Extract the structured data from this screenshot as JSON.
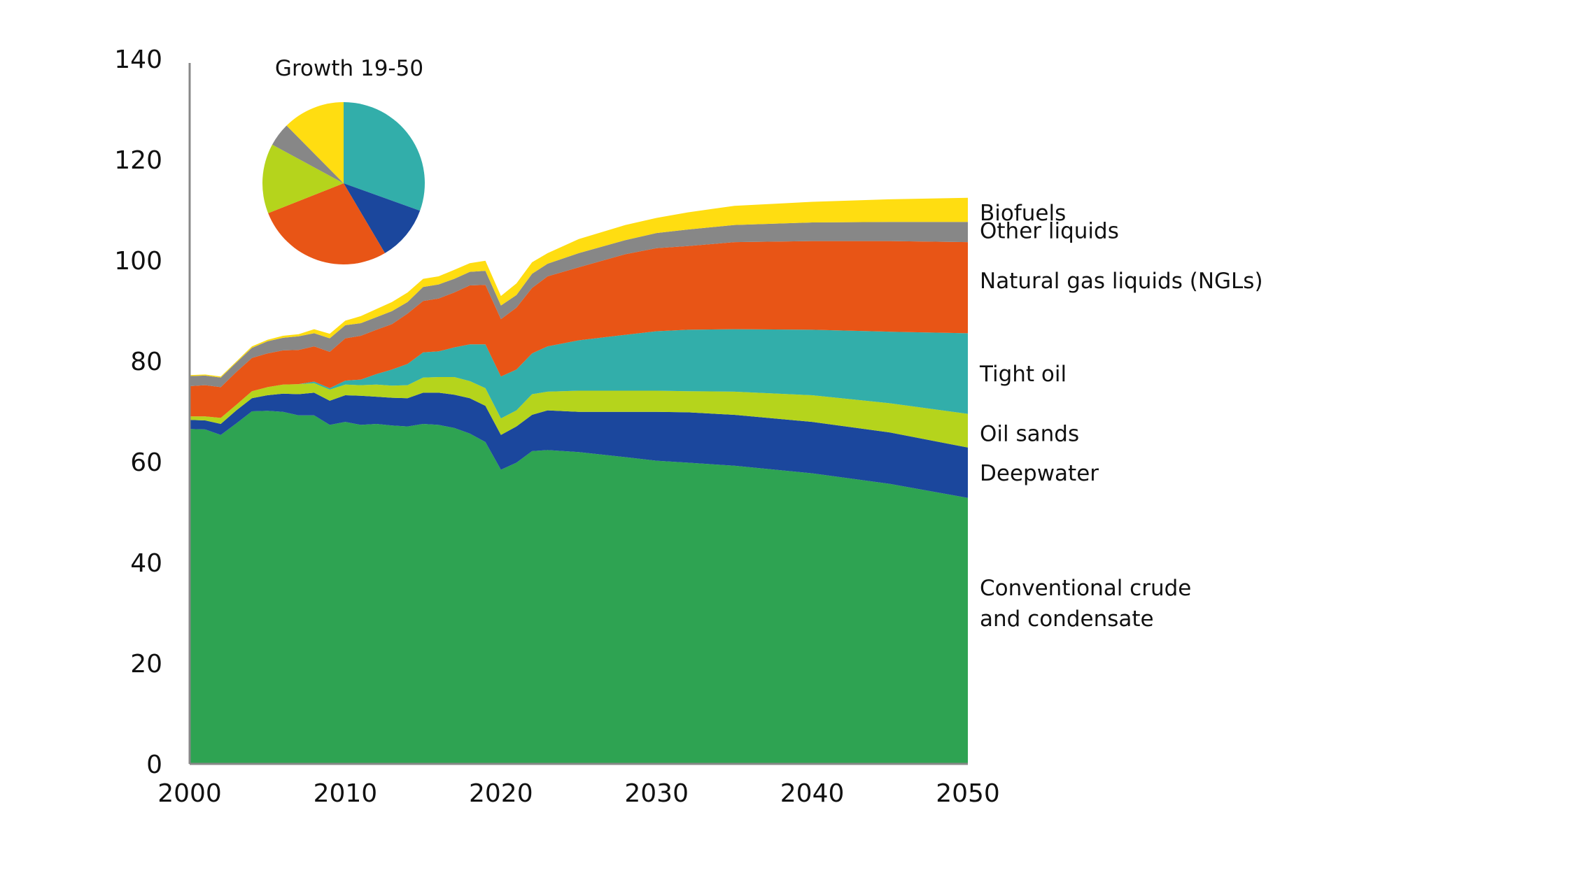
{
  "chart_data": {
    "type": "area",
    "stacked": true,
    "title": "",
    "xlabel": "",
    "ylabel": "",
    "xlim": [
      2000,
      2050
    ],
    "ylim": [
      0,
      140
    ],
    "grid": false,
    "x_ticks": [
      "2000",
      "2010",
      "2020",
      "2030",
      "2040",
      "2050"
    ],
    "y_ticks": [
      "0",
      "20",
      "40",
      "60",
      "80",
      "100",
      "120",
      "140"
    ],
    "x": [
      2000,
      2001,
      2002,
      2003,
      2004,
      2005,
      2006,
      2007,
      2008,
      2009,
      2010,
      2011,
      2012,
      2013,
      2014,
      2015,
      2016,
      2017,
      2018,
      2019,
      2020,
      2021,
      2022,
      2023,
      2025,
      2028,
      2030,
      2032,
      2035,
      2040,
      2045,
      2050
    ],
    "series": [
      {
        "name": "Conventional crude and condensate",
        "label_lines": [
          "Conventional crude",
          "and condensate"
        ],
        "color": "#2EA352",
        "values": [
          66.5,
          66.4,
          65.3,
          67.6,
          70.0,
          70.1,
          69.9,
          69.2,
          69.2,
          67.3,
          67.9,
          67.3,
          67.5,
          67.2,
          67.0,
          67.5,
          67.3,
          66.7,
          65.6,
          63.9,
          58.4,
          59.8,
          62.1,
          62.3,
          61.9,
          60.9,
          60.2,
          59.8,
          59.2,
          57.7,
          55.6,
          52.8
        ]
      },
      {
        "name": "Deepwater",
        "label_lines": [
          "Deepwater"
        ],
        "color": "#1B479D",
        "values": [
          1.8,
          1.8,
          2.2,
          2.6,
          2.6,
          3.1,
          3.6,
          4.2,
          4.5,
          4.8,
          5.3,
          5.8,
          5.4,
          5.5,
          5.6,
          6.2,
          6.4,
          6.6,
          7.0,
          7.2,
          6.9,
          7.2,
          7.2,
          7.9,
          8.0,
          9.0,
          9.7,
          10.0,
          10.1,
          10.2,
          10.2,
          10.0
        ]
      },
      {
        "name": "Oil sands",
        "label_lines": [
          "Oil sands"
        ],
        "color": "#B5D41C",
        "values": [
          0.7,
          0.8,
          1.2,
          1.1,
          1.4,
          1.6,
          1.8,
          2.0,
          1.9,
          2.2,
          2.1,
          2.1,
          2.4,
          2.4,
          2.6,
          3.0,
          3.1,
          3.5,
          3.4,
          3.5,
          3.3,
          3.2,
          4.1,
          3.7,
          4.2,
          4.2,
          4.2,
          4.2,
          4.6,
          5.3,
          5.8,
          6.7
        ]
      },
      {
        "name": "Tight oil",
        "label_lines": [
          "Tight oil"
        ],
        "color": "#32AEAA",
        "values": [
          0.0,
          0.0,
          0.0,
          0.0,
          0.0,
          0.0,
          0.0,
          0.0,
          0.3,
          0.3,
          0.8,
          1.1,
          2.1,
          3.2,
          4.2,
          5.0,
          5.1,
          5.9,
          7.3,
          8.7,
          8.3,
          8.1,
          8.1,
          9.0,
          10.0,
          11.1,
          11.8,
          12.2,
          12.4,
          13.0,
          14.2,
          16.0
        ]
      },
      {
        "name": "Natural gas liquids (NGLs)",
        "label_lines": [
          "Natural gas liquids (NGLs)"
        ],
        "color": "#E85516",
        "values": [
          6.0,
          6.2,
          6.1,
          6.5,
          6.6,
          6.7,
          6.8,
          6.8,
          7.0,
          7.2,
          8.4,
          8.7,
          8.8,
          9.0,
          10.0,
          10.2,
          10.5,
          10.9,
          11.7,
          11.8,
          11.4,
          12.3,
          13.0,
          13.9,
          14.5,
          16.0,
          16.5,
          16.6,
          17.3,
          17.6,
          18.0,
          18.1
        ]
      },
      {
        "name": "Other liquids",
        "label_lines": [
          "Other liquids"
        ],
        "color": "#878787",
        "values": [
          2.0,
          1.9,
          1.9,
          1.9,
          2.0,
          2.4,
          2.5,
          2.7,
          2.6,
          2.7,
          2.6,
          2.5,
          2.5,
          2.6,
          2.3,
          2.8,
          2.8,
          2.7,
          2.7,
          2.8,
          2.7,
          2.5,
          2.8,
          2.5,
          2.8,
          2.8,
          3.0,
          3.3,
          3.4,
          3.7,
          3.8,
          4.0
        ]
      },
      {
        "name": "Biofuels",
        "label_lines": [
          "Biofuels"
        ],
        "color": "#FFDD11",
        "values": [
          0.2,
          0.2,
          0.2,
          0.2,
          0.3,
          0.3,
          0.4,
          0.4,
          0.8,
          0.9,
          0.9,
          1.4,
          1.6,
          1.8,
          1.9,
          1.6,
          1.6,
          1.8,
          1.7,
          2.0,
          1.9,
          2.3,
          2.3,
          2.1,
          2.8,
          3.0,
          3.0,
          3.4,
          3.8,
          4.1,
          4.5,
          4.8
        ]
      }
    ],
    "legend": "right-side inline labels",
    "inset_pie": {
      "title": "Growth 19-50",
      "placement": "top-left",
      "start": "12 o'clock, clockwise",
      "slices": [
        {
          "name": "Tight oil",
          "percent": 30.5,
          "color": "#32AEAA"
        },
        {
          "name": "Deepwater",
          "percent": 11.0,
          "color": "#1B479D"
        },
        {
          "name": "Natural gas liquids (NGLs)",
          "percent": 27.5,
          "color": "#E85516"
        },
        {
          "name": "Oil sands",
          "percent": 13.9,
          "color": "#B5D41C"
        },
        {
          "name": "Other liquids",
          "percent": 4.7,
          "color": "#878787"
        },
        {
          "name": "Biofuels",
          "percent": 12.4,
          "color": "#FFDD11"
        }
      ]
    },
    "axis_color": "#888888"
  }
}
